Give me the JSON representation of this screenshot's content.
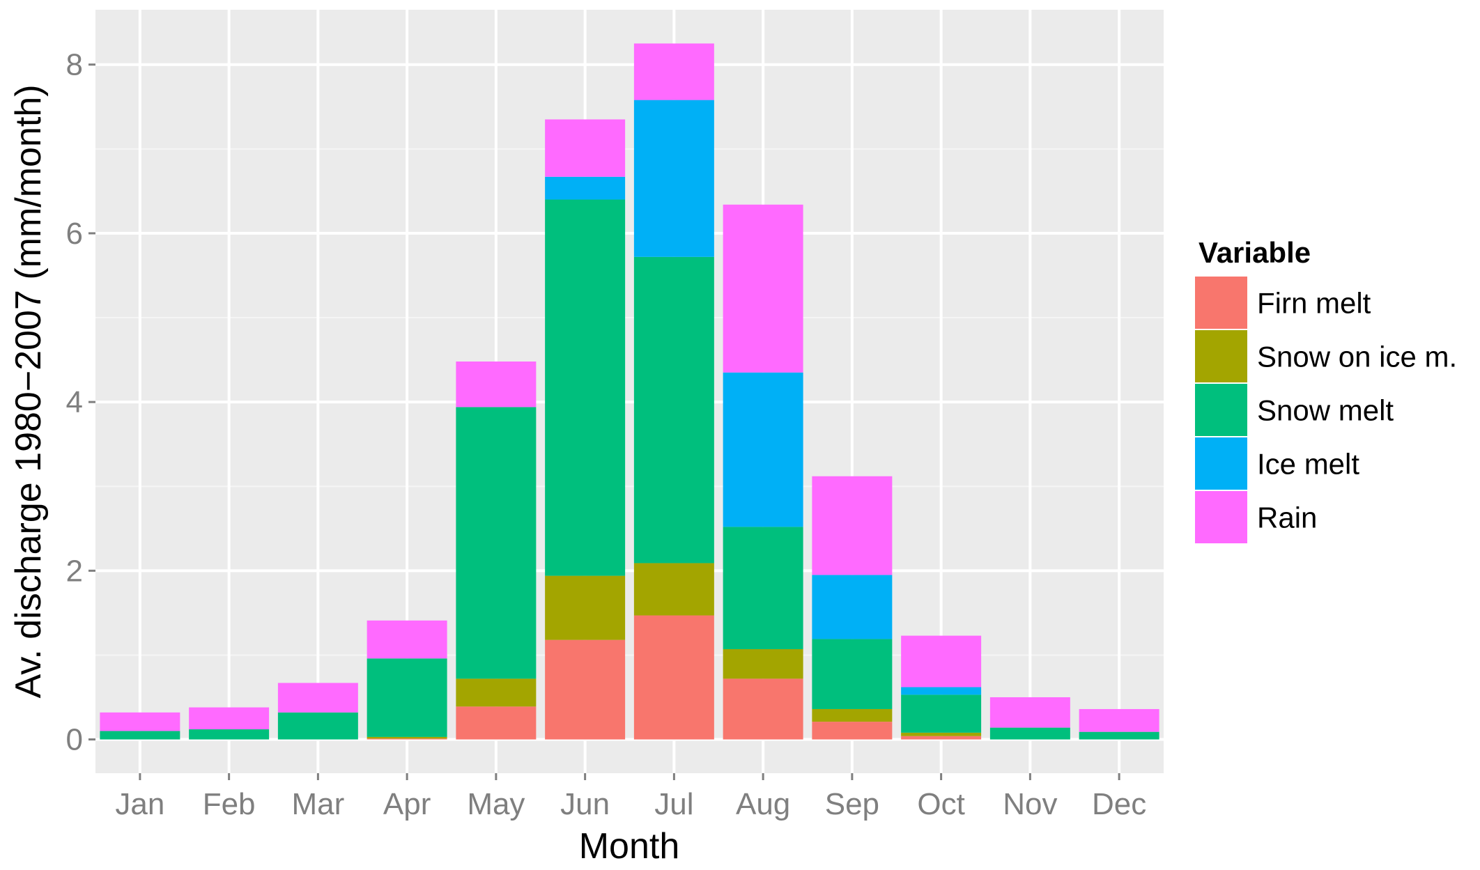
{
  "chart_data": {
    "type": "bar",
    "stacked": true,
    "xlabel": "Month",
    "ylabel": "Av. discharge 1980−2007 (mm/month)",
    "ylim": [
      -0.4,
      8.65
    ],
    "yticks": [
      0,
      2,
      4,
      6,
      8
    ],
    "grid": true,
    "legend_title": "Variable",
    "legend_position": "right",
    "categories": [
      "Jan",
      "Feb",
      "Mar",
      "Apr",
      "May",
      "Jun",
      "Jul",
      "Aug",
      "Sep",
      "Oct",
      "Nov",
      "Dec"
    ],
    "series": [
      {
        "name": "Firn melt",
        "color": "#F8766D",
        "values": [
          0,
          0,
          0,
          0.01,
          0.39,
          1.18,
          1.47,
          0.72,
          0.21,
          0.04,
          0,
          0
        ]
      },
      {
        "name": "Snow on ice m.",
        "color": "#A3A500",
        "values": [
          0,
          0,
          0,
          0.02,
          0.33,
          0.76,
          0.62,
          0.35,
          0.15,
          0.04,
          0,
          0
        ]
      },
      {
        "name": "Snow melt",
        "color": "#00BF7D",
        "values": [
          0.1,
          0.12,
          0.32,
          0.93,
          3.22,
          4.46,
          3.63,
          1.45,
          0.83,
          0.45,
          0.14,
          0.09
        ]
      },
      {
        "name": "Ice melt",
        "color": "#00B0F6",
        "values": [
          0,
          0,
          0,
          0,
          0,
          0.27,
          1.86,
          1.83,
          0.76,
          0.09,
          0,
          0
        ]
      },
      {
        "name": "Rain",
        "color": "#FF6AFF",
        "values": [
          0.22,
          0.26,
          0.35,
          0.45,
          0.54,
          0.68,
          0.67,
          1.99,
          1.17,
          0.61,
          0.36,
          0.27
        ]
      }
    ]
  }
}
